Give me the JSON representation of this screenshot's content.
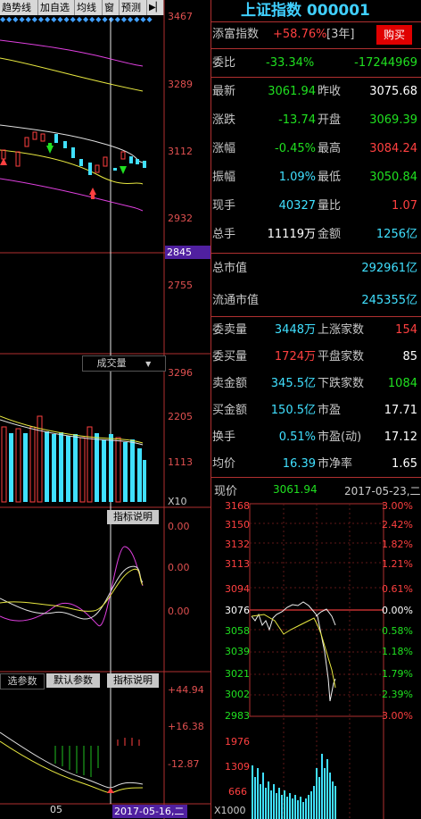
{
  "toolbar": {
    "items": [
      "趋势线",
      "加自选",
      "均线",
      "窗",
      "预测"
    ],
    "arrow_icon": "exit-arrow-icon"
  },
  "main_chart": {
    "y_labels": [
      "3467",
      "3289",
      "3112",
      "2932",
      "2845",
      "2755"
    ],
    "colors": {
      "up": "#ff4040",
      "down": "#40e0ff",
      "ma_yellow": "#e8e840",
      "ma_magenta": "#e040e0"
    }
  },
  "volume": {
    "title": "成交量",
    "y_labels": [
      "3296",
      "2205",
      "1113",
      "X10"
    ]
  },
  "indicator": {
    "button": "指标说明",
    "y_labels": [
      "0.00",
      "0.00",
      "0.00"
    ]
  },
  "macd": {
    "tabs": [
      "选参数",
      "默认参数",
      "指标说明"
    ],
    "y_labels": [
      "+44.94",
      "+16.38",
      "-12.87"
    ],
    "x_label": "05",
    "cursor_date": "2017-05-16,二"
  },
  "quote": {
    "title": "上证指数 000001",
    "tianfu_label": "添富指数",
    "tianfu_value": "+58.76%",
    "tianfu_period": "[3年]",
    "buy_button": "购买",
    "weibi_label": "委比",
    "weibi_pct": "-33.34%",
    "weibi_value": "-17244969",
    "rows": [
      {
        "l1": "最新",
        "v1": "3061.94",
        "c1": "green",
        "l2": "昨收",
        "v2": "3075.68",
        "c2": "white"
      },
      {
        "l1": "涨跌",
        "v1": "-13.74",
        "c1": "green",
        "l2": "开盘",
        "v2": "3069.39",
        "c2": "green"
      },
      {
        "l1": "涨幅",
        "v1": "-0.45%",
        "c1": "green",
        "l2": "最高",
        "v2": "3084.24",
        "c2": "red"
      },
      {
        "l1": "振幅",
        "v1": "1.09%",
        "c1": "cyan",
        "l2": "最低",
        "v2": "3050.84",
        "c2": "green"
      },
      {
        "l1": "现手",
        "v1": "40327",
        "c1": "cyan",
        "l2": "量比",
        "v2": "1.07",
        "c2": "red"
      },
      {
        "l1": "总手",
        "v1": "11119万",
        "c1": "white",
        "l2": "金额",
        "v2": "1256亿",
        "c2": "cyan"
      }
    ],
    "market_cap_label": "总市值",
    "market_cap_value": "292961亿",
    "float_cap_label": "流通市值",
    "float_cap_value": "245355亿",
    "rows2": [
      {
        "l1": "委卖量",
        "v1": "3448万",
        "c1": "cyan",
        "l2": "上涨家数",
        "v2": "154",
        "c2": "red"
      },
      {
        "l1": "委买量",
        "v1": "1724万",
        "c1": "red",
        "l2": "平盘家数",
        "v2": "85",
        "c2": "white"
      },
      {
        "l1": "卖金额",
        "v1": "345.5亿",
        "c1": "cyan",
        "l2": "下跌家数",
        "v2": "1084",
        "c2": "green"
      },
      {
        "l1": "买金额",
        "v1": "150.5亿",
        "c1": "cyan",
        "l2": "市盈",
        "v2": "17.71",
        "c2": "white"
      },
      {
        "l1": "换手",
        "v1": "0.51%",
        "c1": "cyan",
        "l2": "市盈(动)",
        "v2": "17.12",
        "c2": "white"
      },
      {
        "l1": "均价",
        "v1": "16.39",
        "c1": "cyan",
        "l2": "市净率",
        "v2": "1.65",
        "c2": "white"
      }
    ]
  },
  "intraday": {
    "price_label": "现价",
    "price_value": "3061.94",
    "date": "2017-05-23,二",
    "left_labels": [
      "3168",
      "3150",
      "3132",
      "3113",
      "3094",
      "3076",
      "3058",
      "3039",
      "3021",
      "3002",
      "2983"
    ],
    "right_labels": [
      "3.00%",
      "2.42%",
      "1.82%",
      "1.21%",
      "0.61%",
      "0.00%",
      "0.58%",
      "1.18%",
      "1.79%",
      "2.39%",
      "3.00%"
    ],
    "vol_labels": [
      "1976",
      "1309",
      "666",
      "X1000"
    ]
  }
}
